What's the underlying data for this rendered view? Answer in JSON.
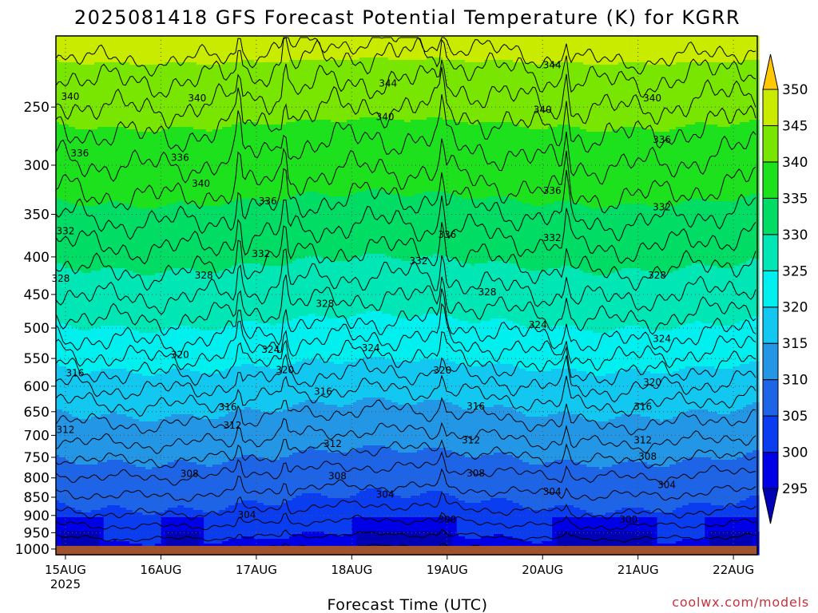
{
  "title": "2025081418 GFS Forecast Potential Temperature (K) for KGRR",
  "xlabel": "Forecast Time (UTC)",
  "credit": "coolwx.com/models",
  "chart_data": {
    "type": "heatmap",
    "title": "2025081418 GFS Forecast Potential Temperature (K) for KGRR",
    "xlabel": "Forecast Time (UTC)",
    "ylabel": "",
    "x_ticks": [
      {
        "label": "15AUG",
        "sub": "2025",
        "day": 0.0
      },
      {
        "label": "16AUG",
        "sub": "",
        "day": 1.0
      },
      {
        "label": "17AUG",
        "sub": "",
        "day": 2.0
      },
      {
        "label": "18AUG",
        "sub": "",
        "day": 3.0
      },
      {
        "label": "19AUG",
        "sub": "",
        "day": 4.0
      },
      {
        "label": "20AUG",
        "sub": "",
        "day": 5.0
      },
      {
        "label": "21AUG",
        "sub": "",
        "day": 6.0
      },
      {
        "label": "22AUG",
        "sub": "",
        "day": 7.0
      }
    ],
    "xlim_days": [
      -0.1,
      7.25
    ],
    "y_ticks": [
      250,
      300,
      350,
      400,
      450,
      500,
      550,
      600,
      650,
      700,
      750,
      800,
      850,
      900,
      950,
      1000
    ],
    "ylim_hpa": [
      200,
      1018
    ],
    "y_scale": "log",
    "grid": "dotted",
    "colorbar": {
      "levels": [
        295,
        300,
        305,
        310,
        315,
        320,
        325,
        330,
        335,
        340,
        345,
        350
      ],
      "colors": [
        "#0000b4",
        "#0000e6",
        "#0a3cf0",
        "#1e64e6",
        "#2396e6",
        "#12c8f0",
        "#00f0f0",
        "#00e6b4",
        "#00dc64",
        "#1ee11e",
        "#78e600",
        "#c8eb00",
        "#ffff00",
        "#ffc800"
      ]
    },
    "ground_color": "#a0522d",
    "series": [
      {
        "level": 300,
        "base": 962,
        "amp": 10
      },
      {
        "level": 304,
        "base": 884,
        "amp": 18
      },
      {
        "level": 308,
        "base": 786,
        "amp": 20
      },
      {
        "level": 312,
        "base": 705,
        "amp": 22
      },
      {
        "level": 316,
        "base": 622,
        "amp": 24
      },
      {
        "level": 320,
        "base": 560,
        "amp": 26
      },
      {
        "level": 324,
        "base": 505,
        "amp": 26
      },
      {
        "level": 328,
        "base": 440,
        "amp": 24
      },
      {
        "level": 332,
        "base": 375,
        "amp": 22
      },
      {
        "level": 336,
        "base": 318,
        "amp": 20
      },
      {
        "level": 340,
        "base": 262,
        "amp": 18
      },
      {
        "level": 344,
        "base": 222,
        "amp": 14
      }
    ],
    "contour_labels": [
      {
        "text": "340",
        "day": 0.05,
        "p": 242
      },
      {
        "text": "340",
        "day": 1.38,
        "p": 243
      },
      {
        "text": "344",
        "day": 3.38,
        "p": 232
      },
      {
        "text": "340",
        "day": 3.35,
        "p": 258
      },
      {
        "text": "340",
        "day": 5.0,
        "p": 252
      },
      {
        "text": "344",
        "day": 5.1,
        "p": 219
      },
      {
        "text": "340",
        "day": 6.15,
        "p": 243
      },
      {
        "text": "336",
        "day": 6.25,
        "p": 277
      },
      {
        "text": "336",
        "day": 0.15,
        "p": 289
      },
      {
        "text": "336",
        "day": 1.2,
        "p": 293
      },
      {
        "text": "340",
        "day": 1.42,
        "p": 318
      },
      {
        "text": "336",
        "day": 2.12,
        "p": 336
      },
      {
        "text": "336",
        "day": 4.0,
        "p": 373
      },
      {
        "text": "336",
        "day": 5.1,
        "p": 325
      },
      {
        "text": "332",
        "day": 0.0,
        "p": 369
      },
      {
        "text": "332",
        "day": 2.05,
        "p": 396
      },
      {
        "text": "332",
        "day": 3.7,
        "p": 405
      },
      {
        "text": "332",
        "day": 5.1,
        "p": 377
      },
      {
        "text": "332",
        "day": 6.25,
        "p": 342
      },
      {
        "text": "328",
        "day": -0.05,
        "p": 428
      },
      {
        "text": "328",
        "day": 1.45,
        "p": 424
      },
      {
        "text": "328",
        "day": 2.72,
        "p": 463
      },
      {
        "text": "328",
        "day": 4.42,
        "p": 447
      },
      {
        "text": "328",
        "day": 6.2,
        "p": 424
      },
      {
        "text": "324",
        "day": 4.95,
        "p": 495
      },
      {
        "text": "324",
        "day": 6.25,
        "p": 517
      },
      {
        "text": "324",
        "day": 2.15,
        "p": 535
      },
      {
        "text": "324",
        "day": 3.2,
        "p": 532
      },
      {
        "text": "320",
        "day": 1.2,
        "p": 544
      },
      {
        "text": "320",
        "day": 2.3,
        "p": 570
      },
      {
        "text": "320",
        "day": 3.95,
        "p": 571
      },
      {
        "text": "320",
        "day": 6.15,
        "p": 593
      },
      {
        "text": "316",
        "day": 0.1,
        "p": 576
      },
      {
        "text": "316",
        "day": 2.7,
        "p": 610
      },
      {
        "text": "316",
        "day": 4.3,
        "p": 639
      },
      {
        "text": "316",
        "day": 6.05,
        "p": 640
      },
      {
        "text": "316",
        "day": 1.7,
        "p": 641
      },
      {
        "text": "312",
        "day": 1.75,
        "p": 679
      },
      {
        "text": "312",
        "day": 0.0,
        "p": 688
      },
      {
        "text": "312",
        "day": 2.8,
        "p": 719
      },
      {
        "text": "312",
        "day": 4.25,
        "p": 711
      },
      {
        "text": "312",
        "day": 6.05,
        "p": 711
      },
      {
        "text": "308",
        "day": 6.1,
        "p": 748
      },
      {
        "text": "308",
        "day": 1.3,
        "p": 790
      },
      {
        "text": "308",
        "day": 2.85,
        "p": 796
      },
      {
        "text": "308",
        "day": 4.3,
        "p": 789
      },
      {
        "text": "304",
        "day": 6.3,
        "p": 818
      },
      {
        "text": "304",
        "day": 5.1,
        "p": 835
      },
      {
        "text": "304",
        "day": 3.35,
        "p": 843
      },
      {
        "text": "304",
        "day": 1.9,
        "p": 898
      },
      {
        "text": "300",
        "day": 4.0,
        "p": 912
      },
      {
        "text": "300",
        "day": 5.9,
        "p": 912
      }
    ]
  }
}
